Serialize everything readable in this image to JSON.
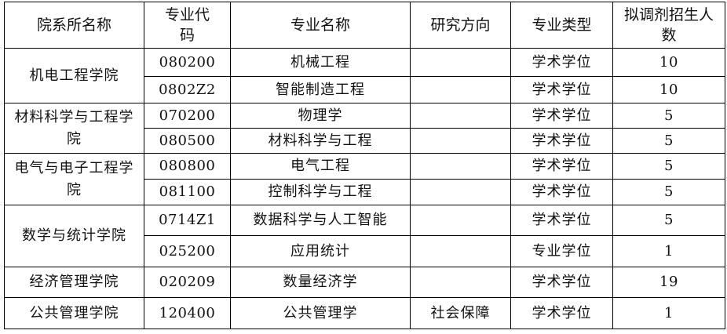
{
  "headers": [
    "院系所名称",
    "专业代码",
    "专业名称",
    "研究方向",
    "专业类型",
    "拟调剂招生人数"
  ],
  "rows": [
    {
      "dept": "机电工程学院",
      "code": "080200",
      "major": "机械工程",
      "direction": "",
      "type": "学术学位",
      "count": "10"
    },
    {
      "code": "0802Z2",
      "major": "智能制造工程",
      "direction": "",
      "type": "学术学位",
      "count": "10"
    },
    {
      "dept": "材料科学与工程学院",
      "code": "070200",
      "major": "物理学",
      "direction": "",
      "type": "学术学位",
      "count": "5"
    },
    {
      "code": "080500",
      "major": "材料科学与工程",
      "direction": "",
      "type": "学术学位",
      "count": "5"
    },
    {
      "dept": "电气与电子工程学院",
      "code": "080800",
      "major": "电气工程",
      "direction": "",
      "type": "学术学位",
      "count": "5"
    },
    {
      "code": "081100",
      "major": "控制科学与工程",
      "direction": "",
      "type": "学术学位",
      "count": "5"
    },
    {
      "dept": "数学与统计学院",
      "code": "0714Z1",
      "major": "数据科学与人工智能",
      "direction": "",
      "type": "学术学位",
      "count": "5"
    },
    {
      "code": "025200",
      "major": "应用统计",
      "direction": "",
      "type": "专业学位",
      "count": "1"
    },
    {
      "dept": "经济管理学院",
      "code": "020209",
      "major": "数量经济学",
      "direction": "",
      "type": "学术学位",
      "count": "19"
    },
    {
      "dept": "公共管理学院",
      "code": "120400",
      "major": "公共管理学",
      "direction": "社会保障",
      "type": "学术学位",
      "count": "1"
    }
  ]
}
